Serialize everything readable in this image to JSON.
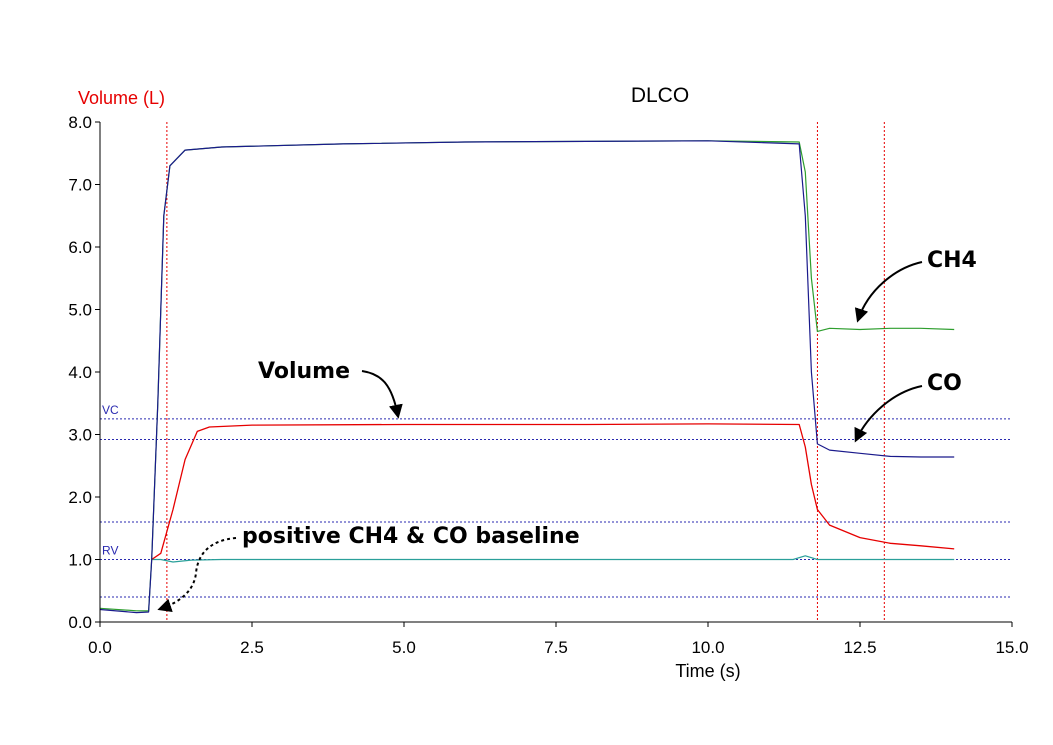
{
  "chart_data": {
    "type": "line",
    "title": "DLCO",
    "xlabel": "Time (s)",
    "ylabel": "Volume (L)",
    "xlim": [
      0,
      15
    ],
    "ylim": [
      0,
      8
    ],
    "x_ticks": [
      "0.0",
      "2.5",
      "5.0",
      "7.5",
      "10.0",
      "12.5",
      "15.0"
    ],
    "y_ticks": [
      "0.0",
      "1.0",
      "2.0",
      "3.0",
      "4.0",
      "5.0",
      "6.0",
      "7.0",
      "8.0"
    ],
    "reference_lines": {
      "horizontal": [
        {
          "label": "VC",
          "y": 3.25
        },
        {
          "label": "",
          "y": 2.92
        },
        {
          "label": "",
          "y": 1.6
        },
        {
          "label": "RV",
          "y": 1.0
        },
        {
          "label": "",
          "y": 0.4
        }
      ],
      "vertical": [
        1.1,
        11.8,
        12.9
      ]
    },
    "series": [
      {
        "name": "CH4",
        "color": "#2e9e2e",
        "points": [
          [
            0,
            0.22
          ],
          [
            0.6,
            0.18
          ],
          [
            0.8,
            0.18
          ],
          [
            0.85,
            1.0
          ],
          [
            0.95,
            3.5
          ],
          [
            1.05,
            6.5
          ],
          [
            1.15,
            7.3
          ],
          [
            1.4,
            7.55
          ],
          [
            2.0,
            7.6
          ],
          [
            4.0,
            7.65
          ],
          [
            6.0,
            7.68
          ],
          [
            8.0,
            7.69
          ],
          [
            10.0,
            7.7
          ],
          [
            11.5,
            7.68
          ],
          [
            11.6,
            7.2
          ],
          [
            11.7,
            5.5
          ],
          [
            11.8,
            4.65
          ],
          [
            12.0,
            4.7
          ],
          [
            12.5,
            4.68
          ],
          [
            13.0,
            4.7
          ],
          [
            13.5,
            4.7
          ],
          [
            14.05,
            4.68
          ]
        ]
      },
      {
        "name": "CO",
        "color": "#1a1a8c",
        "points": [
          [
            0,
            0.2
          ],
          [
            0.6,
            0.15
          ],
          [
            0.8,
            0.16
          ],
          [
            0.85,
            1.0
          ],
          [
            0.95,
            3.5
          ],
          [
            1.05,
            6.5
          ],
          [
            1.15,
            7.3
          ],
          [
            1.4,
            7.55
          ],
          [
            2.0,
            7.6
          ],
          [
            4.0,
            7.65
          ],
          [
            6.0,
            7.68
          ],
          [
            8.0,
            7.69
          ],
          [
            10.0,
            7.7
          ],
          [
            11.5,
            7.65
          ],
          [
            11.6,
            6.5
          ],
          [
            11.7,
            4.0
          ],
          [
            11.8,
            2.85
          ],
          [
            12.0,
            2.75
          ],
          [
            12.5,
            2.7
          ],
          [
            13.0,
            2.65
          ],
          [
            13.5,
            2.64
          ],
          [
            14.05,
            2.64
          ]
        ]
      },
      {
        "name": "Volume",
        "color": "#e60000",
        "points": [
          [
            0.85,
            1.0
          ],
          [
            1.0,
            1.1
          ],
          [
            1.2,
            1.8
          ],
          [
            1.4,
            2.6
          ],
          [
            1.6,
            3.05
          ],
          [
            1.8,
            3.12
          ],
          [
            2.5,
            3.15
          ],
          [
            5.0,
            3.16
          ],
          [
            8.0,
            3.16
          ],
          [
            10.0,
            3.17
          ],
          [
            11.5,
            3.16
          ],
          [
            11.6,
            2.8
          ],
          [
            11.7,
            2.2
          ],
          [
            11.8,
            1.8
          ],
          [
            12.0,
            1.55
          ],
          [
            12.5,
            1.35
          ],
          [
            13.0,
            1.26
          ],
          [
            13.5,
            1.22
          ],
          [
            14.05,
            1.17
          ]
        ]
      },
      {
        "name": "Baseline",
        "color": "#2aa09a",
        "points": [
          [
            0.85,
            1.0
          ],
          [
            1.0,
            1.0
          ],
          [
            1.2,
            0.96
          ],
          [
            1.5,
            0.99
          ],
          [
            2.0,
            1.0
          ],
          [
            5.0,
            1.0
          ],
          [
            11.4,
            1.0
          ],
          [
            11.6,
            1.06
          ],
          [
            11.8,
            1.0
          ],
          [
            14.05,
            1.0
          ]
        ]
      }
    ],
    "annotations": [
      {
        "text": "CH4",
        "points_to": [
          12.5,
          4.7
        ]
      },
      {
        "text": "CO",
        "points_to": [
          12.5,
          2.8
        ]
      },
      {
        "text": "Volume",
        "points_to": [
          5.0,
          3.2
        ]
      },
      {
        "text": "positive CH4 & CO baseline",
        "points_to": [
          1.0,
          0.2
        ]
      }
    ]
  }
}
